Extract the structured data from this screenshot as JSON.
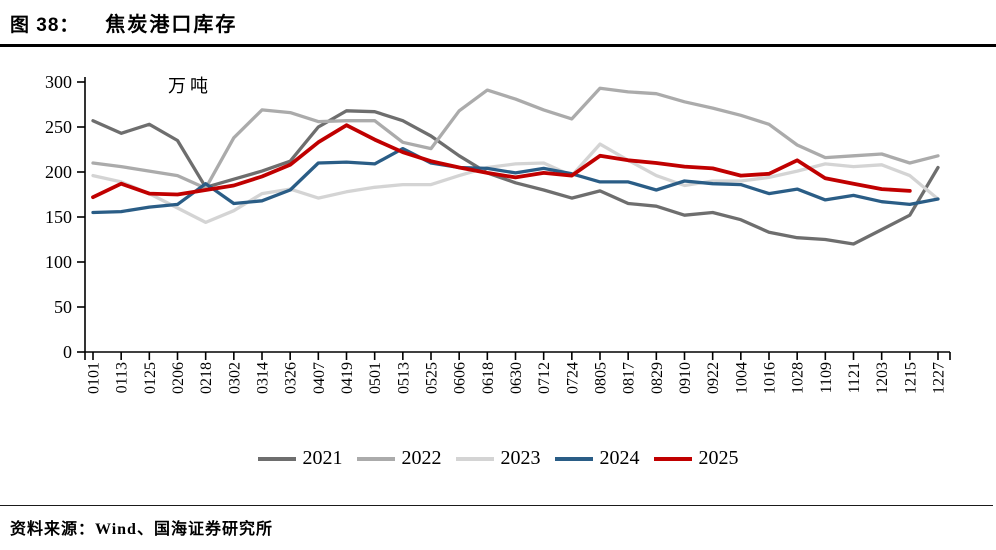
{
  "figure": {
    "label": "图 38：",
    "title": "焦炭港口库存",
    "source": "资料来源：Wind、国海证券研究所"
  },
  "chart_data": {
    "type": "line",
    "title": "焦炭港口库存",
    "unit_label": "万吨",
    "xlabel": "",
    "ylabel": "万吨",
    "ylim": [
      0,
      300
    ],
    "ytick_step": 50,
    "grid": false,
    "legend_position": "bottom",
    "axis_color": "#000000",
    "x_labels": [
      "0101",
      "0113",
      "0125",
      "0206",
      "0218",
      "0302",
      "0314",
      "0326",
      "0407",
      "0419",
      "0501",
      "0513",
      "0525",
      "0606",
      "0618",
      "0630",
      "0712",
      "0724",
      "0805",
      "0817",
      "0829",
      "0910",
      "0922",
      "1004",
      "1016",
      "1028",
      "1109",
      "1121",
      "1203",
      "1215",
      "1227"
    ],
    "series": [
      {
        "name": "2021",
        "color": "#6e6e6e",
        "values": [
          257,
          243,
          253,
          235,
          183,
          192,
          201,
          212,
          250,
          268,
          267,
          257,
          240,
          218,
          199,
          188,
          180,
          171,
          179,
          165,
          162,
          152,
          155,
          147,
          133,
          127,
          125,
          120,
          136,
          152,
          205
        ]
      },
      {
        "name": "2022",
        "color": "#ababab",
        "values": [
          210,
          206,
          201,
          196,
          182,
          238,
          269,
          266,
          256,
          257,
          257,
          233,
          226,
          268,
          291,
          281,
          269,
          259,
          293,
          289,
          287,
          278,
          271,
          263,
          253,
          230,
          216,
          218,
          220,
          210,
          218
        ]
      },
      {
        "name": "2023",
        "color": "#d4d4d4",
        "values": [
          196,
          189,
          176,
          160,
          144,
          157,
          176,
          181,
          171,
          178,
          183,
          186,
          186,
          196,
          205,
          209,
          210,
          196,
          231,
          213,
          196,
          185,
          190,
          190,
          194,
          201,
          209,
          206,
          208,
          196,
          170
        ]
      },
      {
        "name": "2024",
        "color": "#2a5d86",
        "values": [
          155,
          156,
          161,
          164,
          187,
          165,
          168,
          180,
          210,
          211,
          209,
          226,
          210,
          205,
          204,
          199,
          204,
          198,
          189,
          189,
          180,
          190,
          187,
          186,
          176,
          181,
          169,
          174,
          167,
          164,
          170
        ]
      },
      {
        "name": "2025",
        "color": "#c00000",
        "values": [
          172,
          187,
          176,
          175,
          180,
          185,
          195,
          208,
          233,
          252,
          236,
          222,
          212,
          205,
          199,
          194,
          199,
          196,
          218,
          213,
          210,
          206,
          204,
          196,
          198,
          213,
          193,
          187,
          181,
          179,
          null
        ]
      }
    ]
  }
}
